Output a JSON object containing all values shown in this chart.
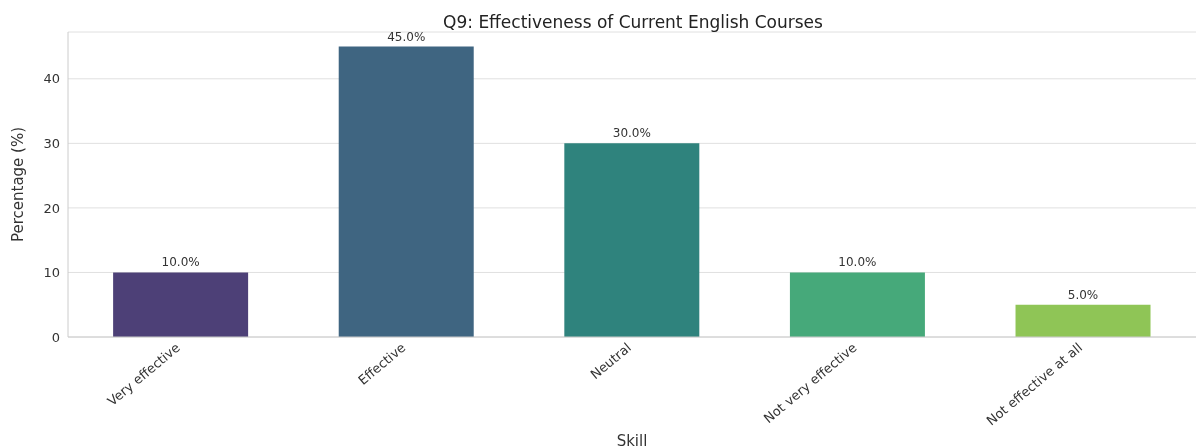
{
  "chart_data": {
    "type": "bar",
    "title": "Q9: Effectiveness of Current English Courses",
    "xlabel": "Skill",
    "ylabel": "Percentage (%)",
    "categories": [
      "Very effective",
      "Effective",
      "Neutral",
      "Not very effective",
      "Not effective at all"
    ],
    "values": [
      10,
      45,
      30,
      10,
      5
    ],
    "colors": [
      "#4d4077",
      "#3f6581",
      "#2f837d",
      "#46a97a",
      "#8fc556"
    ],
    "value_labels": [
      "10.0%",
      "45.0%",
      "30.0%",
      "10.0%",
      "5.0%"
    ],
    "ylim": [
      0,
      47.25
    ],
    "yticks": [
      0,
      10,
      20,
      30,
      40
    ],
    "grid": "y"
  }
}
